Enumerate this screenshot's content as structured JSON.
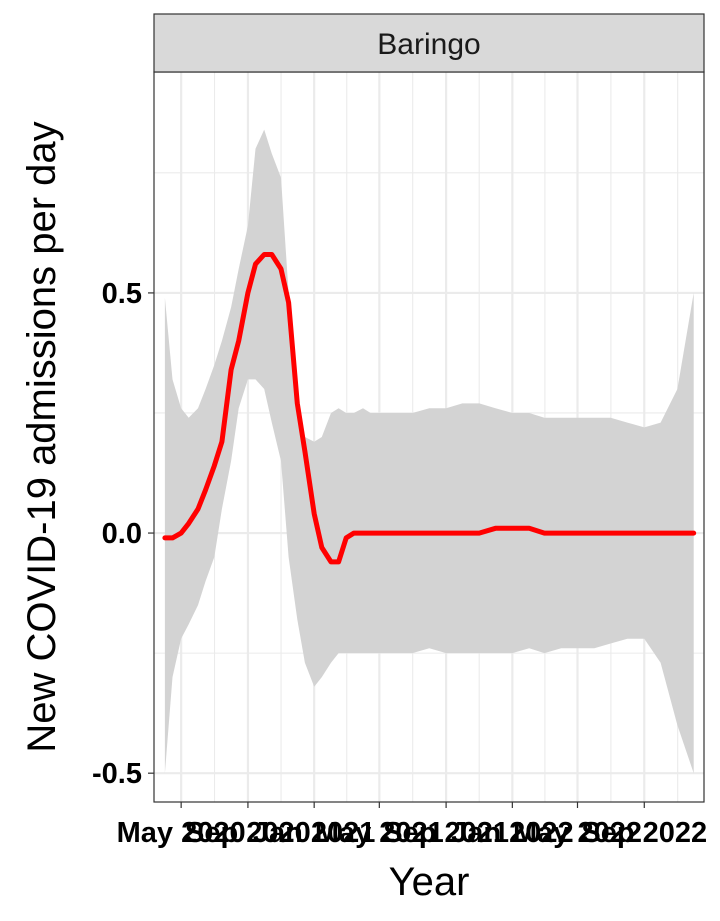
{
  "chart_data": {
    "type": "line",
    "facet_label": "Baringo",
    "xlabel": "Year",
    "ylabel": "New COVID-19 admissions per day",
    "ylim": [
      -0.56,
      0.96
    ],
    "y_ticks": [
      {
        "value": -0.5,
        "label": "-0.5"
      },
      {
        "value": 0.0,
        "label": "0.0"
      },
      {
        "value": 0.5,
        "label": "0.5"
      }
    ],
    "x_range": [
      "2020-03-12",
      "2022-12-20"
    ],
    "x_ticks": [
      {
        "date": "2020-05-01",
        "label": "May 2020"
      },
      {
        "date": "2020-09-01",
        "label": "Sep 2020"
      },
      {
        "date": "2021-01-01",
        "label": "Jan 2021"
      },
      {
        "date": "2021-05-01",
        "label": "May 2021"
      },
      {
        "date": "2021-09-01",
        "label": "Sep 2021"
      },
      {
        "date": "2022-01-01",
        "label": "Jan 2022"
      },
      {
        "date": "2022-05-01",
        "label": "May 2022"
      },
      {
        "date": "2022-09-01",
        "label": "Sep 2022"
      }
    ],
    "grid": true,
    "colors": {
      "line": "#ff0000",
      "ribbon": "#d3d3d3",
      "strip": "#d9d9d9",
      "grid": "#ebebeb"
    },
    "series": [
      {
        "x": [
          "2020-04-01",
          "2020-04-15",
          "2020-05-01",
          "2020-05-15",
          "2020-06-01",
          "2020-06-15",
          "2020-07-01",
          "2020-07-15",
          "2020-08-01",
          "2020-08-15",
          "2020-09-01",
          "2020-09-15",
          "2020-10-01",
          "2020-10-15",
          "2020-11-01",
          "2020-11-15",
          "2020-12-01",
          "2020-12-15",
          "2021-01-01",
          "2021-01-15",
          "2021-02-01",
          "2021-02-15",
          "2021-03-01",
          "2021-03-15",
          "2021-04-01",
          "2021-04-15",
          "2021-05-01",
          "2021-06-01",
          "2021-07-01",
          "2021-08-01",
          "2021-09-01",
          "2021-10-01",
          "2021-11-01",
          "2021-12-01",
          "2022-01-01",
          "2022-02-01",
          "2022-03-01",
          "2022-04-01",
          "2022-05-01",
          "2022-06-01",
          "2022-07-01",
          "2022-08-01",
          "2022-09-01",
          "2022-10-01",
          "2022-11-01",
          "2022-12-01"
        ],
        "y": [
          -0.01,
          -0.01,
          0.0,
          0.02,
          0.05,
          0.09,
          0.14,
          0.19,
          0.34,
          0.4,
          0.5,
          0.56,
          0.58,
          0.58,
          0.55,
          0.48,
          0.27,
          0.17,
          0.04,
          -0.03,
          -0.06,
          -0.06,
          -0.01,
          0.0,
          0.0,
          0.0,
          0.0,
          0.0,
          0.0,
          0.0,
          0.0,
          0.0,
          0.0,
          0.01,
          0.01,
          0.01,
          0.0,
          0.0,
          0.0,
          0.0,
          0.0,
          0.0,
          0.0,
          0.0,
          0.0,
          0.0
        ],
        "upper": [
          0.49,
          0.32,
          0.26,
          0.24,
          0.26,
          0.3,
          0.35,
          0.4,
          0.47,
          0.55,
          0.64,
          0.8,
          0.84,
          0.79,
          0.74,
          0.5,
          0.3,
          0.2,
          0.19,
          0.2,
          0.25,
          0.26,
          0.25,
          0.25,
          0.26,
          0.25,
          0.25,
          0.25,
          0.25,
          0.26,
          0.26,
          0.27,
          0.27,
          0.26,
          0.25,
          0.25,
          0.24,
          0.24,
          0.24,
          0.24,
          0.24,
          0.23,
          0.22,
          0.23,
          0.3,
          0.5
        ],
        "lower": [
          -0.5,
          -0.3,
          -0.22,
          -0.19,
          -0.15,
          -0.1,
          -0.05,
          0.05,
          0.15,
          0.26,
          0.32,
          0.32,
          0.3,
          0.23,
          0.15,
          -0.05,
          -0.18,
          -0.27,
          -0.32,
          -0.3,
          -0.27,
          -0.25,
          -0.25,
          -0.25,
          -0.25,
          -0.25,
          -0.25,
          -0.25,
          -0.25,
          -0.24,
          -0.25,
          -0.25,
          -0.25,
          -0.25,
          -0.25,
          -0.24,
          -0.25,
          -0.24,
          -0.24,
          -0.24,
          -0.23,
          -0.22,
          -0.22,
          -0.27,
          -0.4,
          -0.5
        ]
      }
    ]
  }
}
